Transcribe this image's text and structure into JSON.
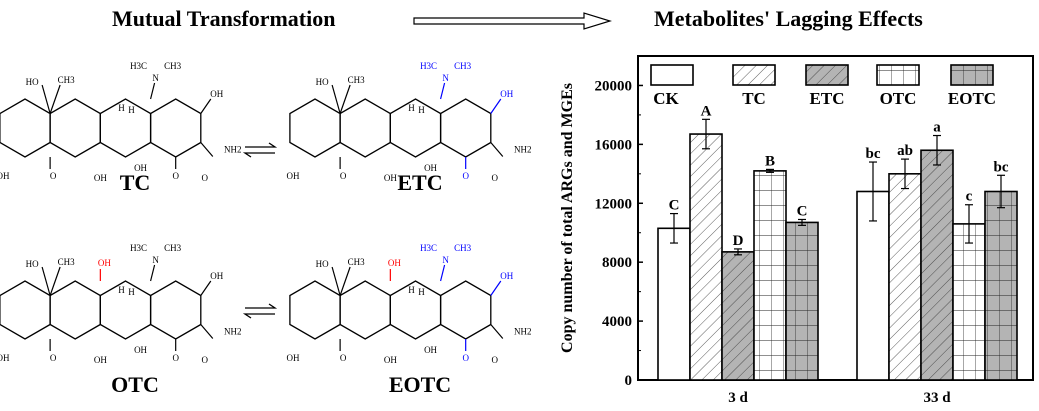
{
  "header": {
    "left_title": "Mutual Transformation",
    "right_title": "Metabolites' Lagging Effects"
  },
  "structures": [
    {
      "name": "TC",
      "atoms": {
        "oh_top": "HO",
        "me_top": "CH3",
        "nme2_n": "N",
        "nme2_a": "H3C",
        "nme2_b": "CH3",
        "h1": "H",
        "h2": "H",
        "oh_a": "OH",
        "nh2": "NH2",
        "o_amide": "O",
        "oh_b": "OH",
        "o1": "O",
        "oh_c": "OH",
        "oh_d": "OH",
        "o2": "O"
      },
      "highlight": "none"
    },
    {
      "name": "ETC",
      "atoms": {
        "oh_top": "HO",
        "me_top": "CH3",
        "nme2_n": "N",
        "nme2_a": "H3C",
        "nme2_b": "CH3",
        "h1": "H",
        "h2": "H",
        "oh_a": "OH",
        "nh2": "NH2",
        "o_amide": "O",
        "oh_b": "OH",
        "o1": "O",
        "oh_c": "OH",
        "oh_d": "OH",
        "o2": "O"
      },
      "highlight": "epi"
    },
    {
      "name": "OTC",
      "atoms": {
        "oh_top": "HO",
        "me_top": "CH3",
        "oh_5": "OH",
        "nme2_n": "N",
        "nme2_a": "H3C",
        "nme2_b": "CH3",
        "h1": "H",
        "h2": "H",
        "oh_a": "OH",
        "nh2": "NH2",
        "o_amide": "O",
        "oh_b": "OH",
        "o1": "O",
        "oh_c": "OH",
        "oh_d": "OH",
        "o2": "O"
      },
      "highlight": "oxy"
    },
    {
      "name": "EOTC",
      "atoms": {
        "oh_top": "HO",
        "me_top": "CH3",
        "oh_5": "OH",
        "nme2_n": "N",
        "nme2_a": "H3C",
        "nme2_b": "CH3",
        "h1": "H",
        "h2": "H",
        "oh_a": "OH",
        "nh2": "NH2",
        "o_amide": "O",
        "oh_b": "OH",
        "o1": "O",
        "oh_c": "OH",
        "oh_d": "OH",
        "o2": "O"
      },
      "highlight": "both"
    }
  ],
  "colors": {
    "epi": "#0000ff",
    "oxy": "#ff0000",
    "gray_fill": "#b4b4b4"
  },
  "chart_data": {
    "type": "bar",
    "categories": [
      "3 d",
      "33 d"
    ],
    "ylabel": "Copy number of total ARGs and MGEs",
    "xlabel": "",
    "ylim": [
      0,
      22000
    ],
    "yticks": [
      "0",
      "4000",
      "8000",
      "12000",
      "16000",
      "20000"
    ],
    "legend_placement": "top",
    "grid": false,
    "series": [
      {
        "name": "CK",
        "values": [
          10300,
          12800
        ],
        "errors": [
          1000,
          2000
        ],
        "letters": [
          "C",
          "bc"
        ],
        "fill": "white",
        "pattern": "none"
      },
      {
        "name": "TC",
        "values": [
          16700,
          14000
        ],
        "errors": [
          1000,
          1000
        ],
        "letters": [
          "A",
          "ab"
        ],
        "fill": "white",
        "pattern": "diagonal"
      },
      {
        "name": "ETC",
        "values": [
          8700,
          15600
        ],
        "errors": [
          200,
          1000
        ],
        "letters": [
          "D",
          "a"
        ],
        "fill": "gray",
        "pattern": "diagonal"
      },
      {
        "name": "OTC",
        "values": [
          14200,
          10600
        ],
        "errors": [
          100,
          1300
        ],
        "letters": [
          "B",
          "c"
        ],
        "fill": "white",
        "pattern": "grid"
      },
      {
        "name": "EOTC",
        "values": [
          10700,
          12800
        ],
        "errors": [
          200,
          1100
        ],
        "letters": [
          "C",
          "bc"
        ],
        "fill": "gray",
        "pattern": "grid"
      }
    ]
  }
}
